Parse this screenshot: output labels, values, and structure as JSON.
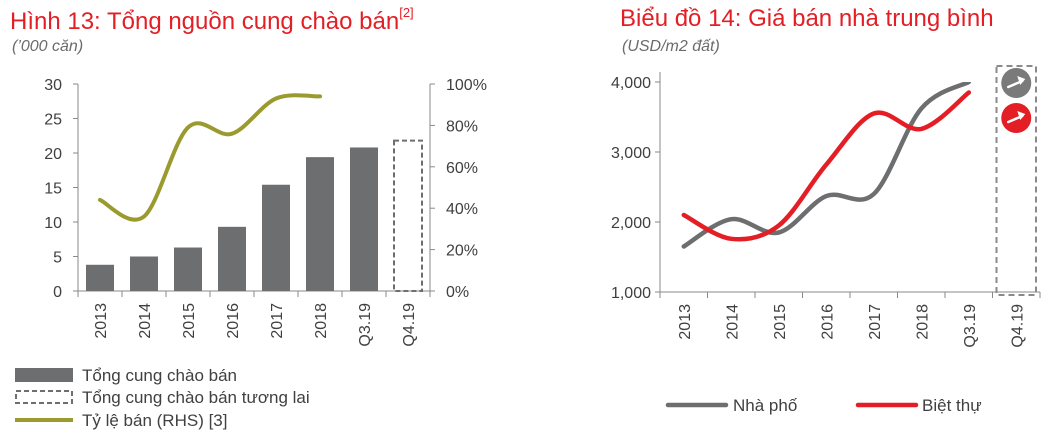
{
  "left": {
    "title": "Hình 13: Tổng nguồn cung chào bán",
    "title_ref": "[2]",
    "subtitle": "(’000 căn)"
  },
  "right": {
    "title": "Biểu đồ 14: Giá bán nhà trung bình",
    "subtitle": "(USD/m2 đất)"
  },
  "chart_data": [
    {
      "type": "bar",
      "categories": [
        "2013",
        "2014",
        "2015",
        "2016",
        "2017",
        "2018",
        "Q3.19",
        "Q4.19"
      ],
      "ylim": [
        0,
        30
      ],
      "y_ticks": [
        "0",
        "5",
        "10",
        "15",
        "20",
        "25",
        "30"
      ],
      "y2lim": [
        0,
        100
      ],
      "y2_ticks": [
        "0%",
        "20%",
        "40%",
        "60%",
        "80%",
        "100%"
      ],
      "series": [
        {
          "name": "Tổng cung chào bán",
          "kind": "bar",
          "color": "#6d6e70",
          "values": [
            3.8,
            5.0,
            6.3,
            9.3,
            15.4,
            19.4,
            20.8,
            null
          ]
        },
        {
          "name": "Tổng cung chào bán tương lai",
          "kind": "dashed-bar",
          "color": "#6d6e70",
          "values": [
            null,
            null,
            null,
            null,
            null,
            null,
            null,
            21.8
          ]
        },
        {
          "name": "Tỷ lệ bán (RHS) [3]",
          "kind": "line",
          "axis": "right",
          "color": "#9a9a2e",
          "values": [
            44,
            36,
            79,
            76,
            93,
            94,
            null,
            null
          ]
        }
      ]
    },
    {
      "type": "line",
      "categories": [
        "2013",
        "2014",
        "2015",
        "2016",
        "2017",
        "2018",
        "Q3.19",
        "Q4.19"
      ],
      "ylim": [
        1000,
        4000
      ],
      "y_ticks": [
        "1,000",
        "2,000",
        "3,000",
        "4,000"
      ],
      "series": [
        {
          "name": "Nhà phố",
          "color": "#6d6e70",
          "values": [
            1650,
            2040,
            1850,
            2370,
            2400,
            3620,
            4000,
            null
          ]
        },
        {
          "name": "Biệt thự",
          "color": "#e41e25",
          "values": [
            2100,
            1760,
            1950,
            2820,
            3550,
            3330,
            3850,
            null
          ]
        }
      ],
      "forecast_markers": [
        {
          "name": "Nhà phố",
          "color": "#7a7a7a",
          "icon": "up-arrow-icon"
        },
        {
          "name": "Biệt thự",
          "color": "#e41e25",
          "icon": "up-arrow-icon"
        }
      ]
    }
  ]
}
